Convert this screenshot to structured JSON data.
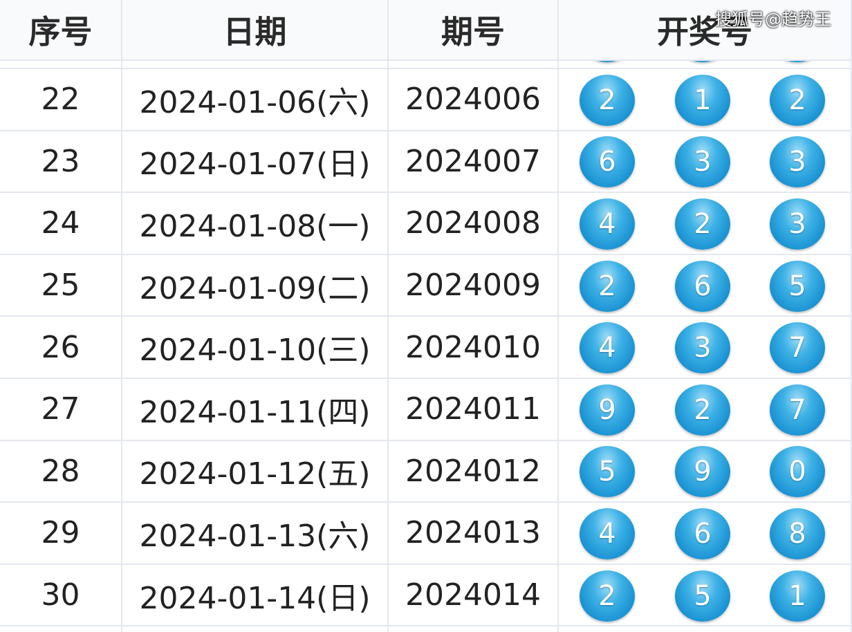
{
  "header": {
    "columns": [
      "序号",
      "日期",
      "期号",
      "开奖号"
    ]
  },
  "watermark": "搜狐号@趋势王",
  "table": {
    "rows": [
      [
        "22",
        "2024-01-06(六)",
        "2024006",
        [
          "2",
          "1",
          "2"
        ]
      ],
      [
        "23",
        "2024-01-07(日)",
        "2024007",
        [
          "6",
          "3",
          "3"
        ]
      ],
      [
        "24",
        "2024-01-08(一)",
        "2024008",
        [
          "4",
          "2",
          "3"
        ]
      ],
      [
        "25",
        "2024-01-09(二)",
        "2024009",
        [
          "2",
          "6",
          "5"
        ]
      ],
      [
        "26",
        "2024-01-10(三)",
        "2024010",
        [
          "4",
          "3",
          "7"
        ]
      ],
      [
        "27",
        "2024-01-11(四)",
        "2024011",
        [
          "9",
          "2",
          "7"
        ]
      ],
      [
        "28",
        "2024-01-12(五)",
        "2024012",
        [
          "5",
          "9",
          "0"
        ]
      ],
      [
        "29",
        "2024-01-13(六)",
        "2024013",
        [
          "4",
          "6",
          "8"
        ]
      ],
      [
        "30",
        "2024-01-14(日)",
        "2024014",
        [
          "2",
          "5",
          "1"
        ]
      ]
    ]
  }
}
